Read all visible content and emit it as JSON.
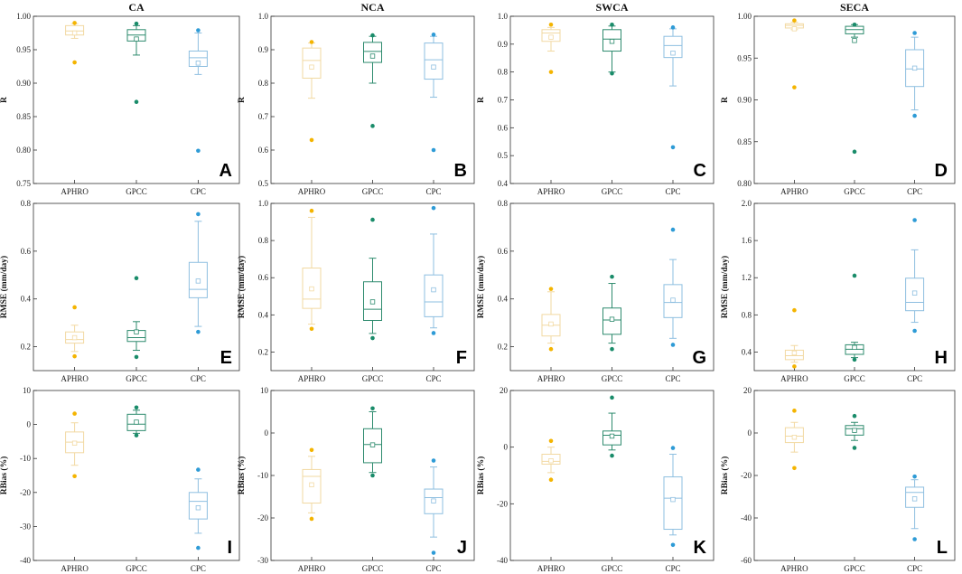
{
  "series_colors": {
    "APHRO": "#F4B400",
    "GPCC": "#1A8C6A",
    "CPC": "#2E9BD6"
  },
  "box_colors": {
    "APHRO": "#F2D9A2",
    "GPCC": "#2E8B6E",
    "CPC": "#8EBFE0"
  },
  "categories": [
    "APHRO",
    "GPCC",
    "CPC"
  ],
  "column_titles": [
    "CA",
    "NCA",
    "SWCA",
    "SECA"
  ],
  "chart_data": [
    {
      "type": "box",
      "panel": "A",
      "title": "CA",
      "ylabel": "R",
      "ylim": [
        0.75,
        1.0
      ],
      "yticks": [
        0.75,
        0.8,
        0.85,
        0.9,
        0.95,
        1.0
      ],
      "ytick_labels": [
        "0.75",
        "0.80",
        "0.85",
        "0.90",
        "0.95",
        "1.00"
      ],
      "categories": [
        "APHRO",
        "GPCC",
        "CPC"
      ],
      "boxes": [
        {
          "name": "APHRO",
          "wlo": 0.967,
          "q1": 0.972,
          "median": 0.978,
          "q3": 0.986,
          "whi": 0.989,
          "mean": 0.975,
          "outliers": [
            0.931,
            0.99
          ]
        },
        {
          "name": "GPCC",
          "wlo": 0.942,
          "q1": 0.963,
          "median": 0.972,
          "q3": 0.98,
          "whi": 0.986,
          "mean": 0.966,
          "outliers": [
            0.872,
            0.989
          ]
        },
        {
          "name": "CPC",
          "wlo": 0.913,
          "q1": 0.925,
          "median": 0.938,
          "q3": 0.948,
          "whi": 0.975,
          "mean": 0.93,
          "outliers": [
            0.799,
            0.979
          ]
        }
      ]
    },
    {
      "type": "box",
      "panel": "B",
      "title": "NCA",
      "ylabel": "R",
      "ylim": [
        0.5,
        1.0
      ],
      "yticks": [
        0.5,
        0.6,
        0.7,
        0.8,
        0.9,
        1.0
      ],
      "ytick_labels": [
        "0.5",
        "0.6",
        "0.7",
        "0.8",
        "0.9",
        "1.0"
      ],
      "categories": [
        "APHRO",
        "GPCC",
        "CPC"
      ],
      "boxes": [
        {
          "name": "APHRO",
          "wlo": 0.755,
          "q1": 0.815,
          "median": 0.868,
          "q3": 0.905,
          "whi": 0.92,
          "mean": 0.848,
          "outliers": [
            0.63,
            0.923
          ]
        },
        {
          "name": "GPCC",
          "wlo": 0.8,
          "q1": 0.862,
          "median": 0.895,
          "q3": 0.922,
          "whi": 0.94,
          "mean": 0.881,
          "outliers": [
            0.672,
            0.943
          ]
        },
        {
          "name": "CPC",
          "wlo": 0.758,
          "q1": 0.812,
          "median": 0.87,
          "q3": 0.92,
          "whi": 0.94,
          "mean": 0.848,
          "outliers": [
            0.6,
            0.945
          ]
        }
      ]
    },
    {
      "type": "box",
      "panel": "C",
      "title": "SWCA",
      "ylabel": "R",
      "ylim": [
        0.4,
        1.0
      ],
      "yticks": [
        0.4,
        0.5,
        0.6,
        0.7,
        0.8,
        0.9,
        1.0
      ],
      "ytick_labels": [
        "0.4",
        "0.5",
        "0.6",
        "0.7",
        "0.8",
        "0.9",
        "1.0"
      ],
      "categories": [
        "APHRO",
        "GPCC",
        "CPC"
      ],
      "boxes": [
        {
          "name": "APHRO",
          "wlo": 0.875,
          "q1": 0.91,
          "median": 0.94,
          "q3": 0.952,
          "whi": 0.96,
          "mean": 0.925,
          "outliers": [
            0.8,
            0.97
          ]
        },
        {
          "name": "GPCC",
          "wlo": 0.8,
          "q1": 0.875,
          "median": 0.918,
          "q3": 0.952,
          "whi": 0.965,
          "mean": 0.91,
          "outliers": [
            0.795,
            0.97
          ]
        },
        {
          "name": "CPC",
          "wlo": 0.75,
          "q1": 0.852,
          "median": 0.895,
          "q3": 0.928,
          "whi": 0.955,
          "mean": 0.868,
          "outliers": [
            0.53,
            0.96
          ]
        }
      ]
    },
    {
      "type": "box",
      "panel": "D",
      "title": "SECA",
      "ylabel": "R",
      "ylim": [
        0.8,
        1.0
      ],
      "yticks": [
        0.8,
        0.85,
        0.9,
        0.95,
        1.0
      ],
      "ytick_labels": [
        "0.80",
        "0.85",
        "0.90",
        "0.95",
        "1.00"
      ],
      "categories": [
        "APHRO",
        "GPCC",
        "CPC"
      ],
      "boxes": [
        {
          "name": "APHRO",
          "wlo": 0.984,
          "q1": 0.986,
          "median": 0.989,
          "q3": 0.991,
          "whi": 0.993,
          "mean": 0.985,
          "outliers": [
            0.915,
            0.995
          ]
        },
        {
          "name": "GPCC",
          "wlo": 0.975,
          "q1": 0.979,
          "median": 0.984,
          "q3": 0.988,
          "whi": 0.99,
          "mean": 0.971,
          "outliers": [
            0.838,
            0.99
          ]
        },
        {
          "name": "CPC",
          "wlo": 0.888,
          "q1": 0.916,
          "median": 0.937,
          "q3": 0.96,
          "whi": 0.975,
          "mean": 0.938,
          "outliers": [
            0.881,
            0.98
          ]
        }
      ]
    },
    {
      "type": "box",
      "panel": "E",
      "title": "",
      "ylabel": "RMSE (mm/day)",
      "ylim": [
        0.1,
        0.8
      ],
      "yticks": [
        0.2,
        0.4,
        0.6,
        0.8
      ],
      "ytick_labels": [
        "0.2",
        "0.4",
        "0.6",
        "0.8"
      ],
      "categories": [
        "APHRO",
        "GPCC",
        "CPC"
      ],
      "boxes": [
        {
          "name": "APHRO",
          "wlo": 0.18,
          "q1": 0.215,
          "median": 0.23,
          "q3": 0.262,
          "whi": 0.29,
          "mean": 0.238,
          "outliers": [
            0.16,
            0.365
          ]
        },
        {
          "name": "GPCC",
          "wlo": 0.185,
          "q1": 0.222,
          "median": 0.238,
          "q3": 0.268,
          "whi": 0.305,
          "mean": 0.262,
          "outliers": [
            0.157,
            0.487
          ]
        },
        {
          "name": "CPC",
          "wlo": 0.285,
          "q1": 0.405,
          "median": 0.44,
          "q3": 0.553,
          "whi": 0.725,
          "mean": 0.475,
          "outliers": [
            0.262,
            0.755
          ]
        }
      ]
    },
    {
      "type": "box",
      "panel": "F",
      "title": "",
      "ylabel": "RMSE (mm/day)",
      "ylim": [
        0.1,
        1.0
      ],
      "yticks": [
        0.2,
        0.4,
        0.6,
        0.8,
        1.0
      ],
      "ytick_labels": [
        "0.2",
        "0.4",
        "0.6",
        "0.8",
        "1.0"
      ],
      "categories": [
        "APHRO",
        "GPCC",
        "CPC"
      ],
      "boxes": [
        {
          "name": "APHRO",
          "wlo": 0.35,
          "q1": 0.435,
          "median": 0.485,
          "q3": 0.652,
          "whi": 0.925,
          "mean": 0.54,
          "outliers": [
            0.325,
            0.96
          ]
        },
        {
          "name": "GPCC",
          "wlo": 0.3,
          "q1": 0.37,
          "median": 0.43,
          "q3": 0.578,
          "whi": 0.705,
          "mean": 0.47,
          "outliers": [
            0.275,
            0.912
          ]
        },
        {
          "name": "CPC",
          "wlo": 0.33,
          "q1": 0.39,
          "median": 0.47,
          "q3": 0.615,
          "whi": 0.835,
          "mean": 0.535,
          "outliers": [
            0.302,
            0.975
          ]
        }
      ]
    },
    {
      "type": "box",
      "panel": "G",
      "title": "",
      "ylabel": "RMSE (mm/day)",
      "ylim": [
        0.1,
        0.8
      ],
      "yticks": [
        0.2,
        0.4,
        0.6,
        0.8
      ],
      "ytick_labels": [
        "0.2",
        "0.4",
        "0.6",
        "0.8"
      ],
      "categories": [
        "APHRO",
        "GPCC",
        "CPC"
      ],
      "boxes": [
        {
          "name": "APHRO",
          "wlo": 0.215,
          "q1": 0.245,
          "median": 0.29,
          "q3": 0.335,
          "whi": 0.43,
          "mean": 0.295,
          "outliers": [
            0.19,
            0.442
          ]
        },
        {
          "name": "GPCC",
          "wlo": 0.215,
          "q1": 0.252,
          "median": 0.312,
          "q3": 0.362,
          "whi": 0.465,
          "mean": 0.315,
          "outliers": [
            0.19,
            0.493
          ]
        },
        {
          "name": "CPC",
          "wlo": 0.235,
          "q1": 0.322,
          "median": 0.385,
          "q3": 0.46,
          "whi": 0.565,
          "mean": 0.395,
          "outliers": [
            0.208,
            0.69
          ]
        }
      ]
    },
    {
      "type": "box",
      "panel": "H",
      "title": "",
      "ylabel": "RMSE (mm/day)",
      "ylim": [
        0.2,
        2.0
      ],
      "yticks": [
        0.4,
        0.8,
        1.2,
        1.6,
        2.0
      ],
      "ytick_labels": [
        "0.4",
        "0.8",
        "1.2",
        "1.6",
        "2.0"
      ],
      "categories": [
        "APHRO",
        "GPCC",
        "CPC"
      ],
      "boxes": [
        {
          "name": "APHRO",
          "wlo": 0.29,
          "q1": 0.318,
          "median": 0.36,
          "q3": 0.42,
          "whi": 0.47,
          "mean": 0.39,
          "outliers": [
            0.245,
            0.85
          ]
        },
        {
          "name": "GPCC",
          "wlo": 0.34,
          "q1": 0.375,
          "median": 0.43,
          "q3": 0.478,
          "whi": 0.505,
          "mean": 0.45,
          "outliers": [
            0.318,
            1.222
          ]
        },
        {
          "name": "CPC",
          "wlo": 0.72,
          "q1": 0.845,
          "median": 0.935,
          "q3": 1.195,
          "whi": 1.5,
          "mean": 1.035,
          "outliers": [
            0.628,
            1.82
          ]
        }
      ]
    },
    {
      "type": "box",
      "panel": "I",
      "title": "",
      "ylabel": "RBias (%)",
      "ylim": [
        -40,
        10
      ],
      "yticks": [
        -40,
        -30,
        -20,
        -10,
        0,
        10
      ],
      "ytick_labels": [
        "-40",
        "-30",
        "-20",
        "-10",
        "0",
        "10"
      ],
      "categories": [
        "APHRO",
        "GPCC",
        "CPC"
      ],
      "boxes": [
        {
          "name": "APHRO",
          "wlo": -12,
          "q1": -8.3,
          "median": -5.2,
          "q3": -2.2,
          "whi": 0.5,
          "mean": -5.5,
          "outliers": [
            -15.2,
            3.2
          ]
        },
        {
          "name": "GPCC",
          "wlo": -2.6,
          "q1": -1.8,
          "median": 0.1,
          "q3": 3,
          "whi": 4.2,
          "mean": 0.7,
          "outliers": [
            -3.2,
            5
          ]
        },
        {
          "name": "CPC",
          "wlo": -32,
          "q1": -27.8,
          "median": -22.6,
          "q3": -20,
          "whi": -16,
          "mean": -24.5,
          "outliers": [
            -36.3,
            -13.3
          ]
        }
      ]
    },
    {
      "type": "box",
      "panel": "J",
      "title": "",
      "ylabel": "RBias (%)",
      "ylim": [
        -30,
        10
      ],
      "yticks": [
        -30,
        -20,
        -10,
        0,
        10
      ],
      "ytick_labels": [
        "-30",
        "-20",
        "-10",
        "0",
        "10"
      ],
      "categories": [
        "APHRO",
        "GPCC",
        "CPC"
      ],
      "boxes": [
        {
          "name": "APHRO",
          "wlo": -18.8,
          "q1": -16.5,
          "median": -10.2,
          "q3": -8.6,
          "whi": -5.5,
          "mean": -12.2,
          "outliers": [
            -20.2,
            -4
          ]
        },
        {
          "name": "GPCC",
          "wlo": -9.3,
          "q1": -7,
          "median": -2.7,
          "q3": 1,
          "whi": 5,
          "mean": -2.8,
          "outliers": [
            -10,
            5.8
          ]
        },
        {
          "name": "CPC",
          "wlo": -24.5,
          "q1": -19,
          "median": -15.2,
          "q3": -13.2,
          "whi": -8,
          "mean": -16,
          "outliers": [
            -28.2,
            -6.5
          ]
        }
      ]
    },
    {
      "type": "box",
      "panel": "K",
      "title": "",
      "ylabel": "RBias (%)",
      "ylim": [
        -40,
        20
      ],
      "yticks": [
        -40,
        -20,
        0,
        20
      ],
      "ytick_labels": [
        "-40",
        "-20",
        "0",
        "20"
      ],
      "categories": [
        "APHRO",
        "GPCC",
        "CPC"
      ],
      "boxes": [
        {
          "name": "APHRO",
          "wlo": -9,
          "q1": -6,
          "median": -5,
          "q3": -2.5,
          "whi": 0,
          "mean": -4.8,
          "outliers": [
            -11.5,
            2.2
          ]
        },
        {
          "name": "GPCC",
          "wlo": -1,
          "q1": 0.8,
          "median": 4.2,
          "q3": 5.7,
          "whi": 12,
          "mean": 3.9,
          "outliers": [
            -3,
            17.5
          ]
        },
        {
          "name": "CPC",
          "wlo": -31,
          "q1": -29,
          "median": -18,
          "q3": -10.5,
          "whi": -2.5,
          "mean": -18.5,
          "outliers": [
            -34.5,
            -0.3
          ]
        }
      ]
    },
    {
      "type": "box",
      "panel": "L",
      "title": "",
      "ylabel": "RBias (%)",
      "ylim": [
        -60,
        20
      ],
      "yticks": [
        -60,
        -40,
        -20,
        0,
        20
      ],
      "ytick_labels": [
        "-60",
        "-40",
        "-20",
        "0",
        "20"
      ],
      "categories": [
        "APHRO",
        "GPCC",
        "CPC"
      ],
      "boxes": [
        {
          "name": "APHRO",
          "wlo": -9,
          "q1": -4.5,
          "median": -1.5,
          "q3": 2.5,
          "whi": 5,
          "mean": -2,
          "outliers": [
            -16.5,
            10.5
          ]
        },
        {
          "name": "GPCC",
          "wlo": -3.5,
          "q1": -1,
          "median": 2,
          "q3": 3.5,
          "whi": 5,
          "mean": 1.2,
          "outliers": [
            -7,
            8
          ]
        },
        {
          "name": "CPC",
          "wlo": -45,
          "q1": -35,
          "median": -28,
          "q3": -25.5,
          "whi": -22,
          "mean": -31,
          "outliers": [
            -50,
            -20.5
          ]
        }
      ]
    }
  ]
}
